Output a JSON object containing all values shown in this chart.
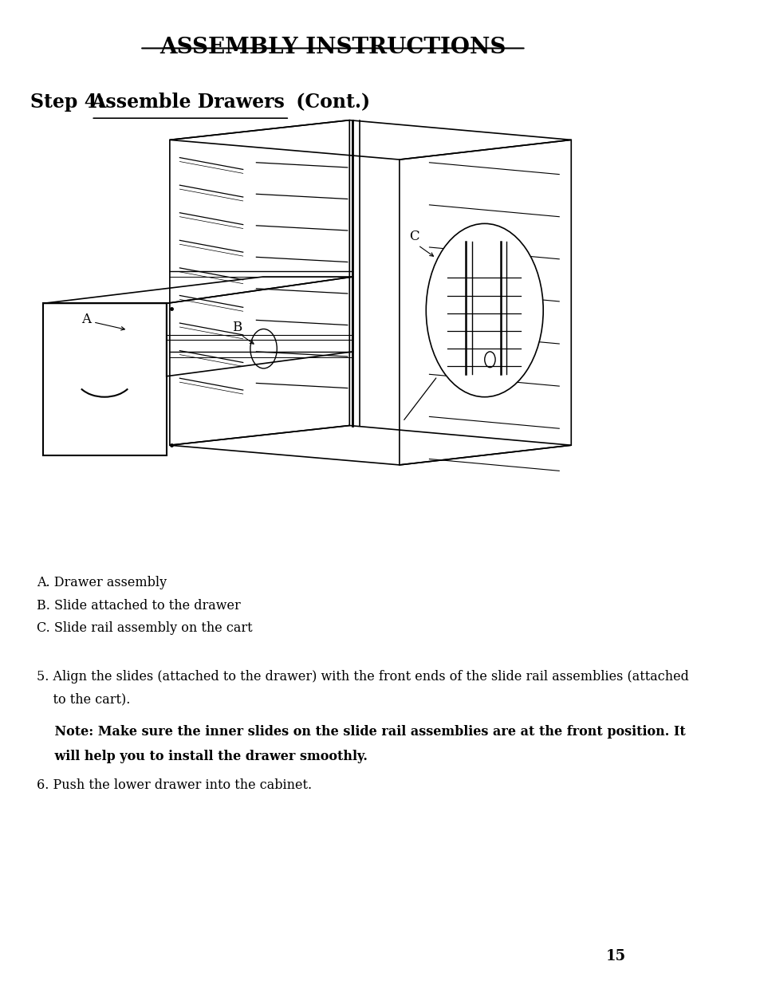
{
  "title": "ASSEMBLY INSTRUCTIONS",
  "legend_lines": [
    "A. Drawer assembly",
    "B. Slide attached to the drawer",
    "C. Slide rail assembly on the cart"
  ],
  "instruction_5_line1": "5. Align the slides (attached to the drawer) with the front ends of the slide rail assemblies (attached",
  "instruction_5_line2": "    to the cart).",
  "note_line1": "    Note: Make sure the inner slides on the slide rail assemblies are at the front position. It",
  "note_line2": "    will help you to install the drawer smoothly.",
  "instruction_6": "6. Push the lower drawer into the cabinet.",
  "page_number": "15",
  "bg_color": "#ffffff",
  "text_color": "#000000",
  "font_size_title": 20,
  "font_size_step": 17,
  "font_size_body": 11.5
}
